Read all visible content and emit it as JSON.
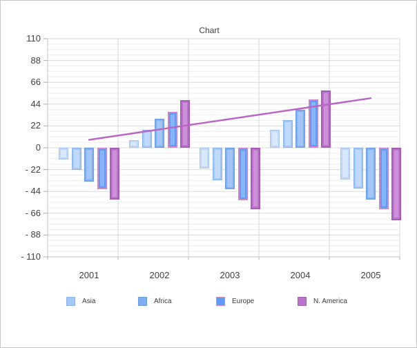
{
  "title": "Chart",
  "chart_data": {
    "type": "bar",
    "title": "Chart",
    "categories": [
      "2001",
      "2002",
      "2003",
      "2004",
      "2005"
    ],
    "series": [
      {
        "name": "",
        "in_legend": false,
        "values": [
          -12,
          8,
          -21,
          18,
          -32
        ],
        "fill": "#BFD7F8",
        "border": "#A9C7F0",
        "highlight": "#DAE8FC"
      },
      {
        "name": "Asia",
        "in_legend": true,
        "values": [
          -22,
          18,
          -33,
          28,
          -41
        ],
        "fill": "#A3C7F6",
        "border": "#8AB2EA",
        "highlight": "#C2DAFA"
      },
      {
        "name": "Africa",
        "in_legend": true,
        "values": [
          -34,
          29,
          -42,
          38,
          -52
        ],
        "fill": "#7EAEF2",
        "border": "#6B9CE2",
        "highlight": "#A3C6F8"
      },
      {
        "name": "Europe",
        "in_legend": true,
        "values": [
          -42,
          36,
          -53,
          49,
          -62
        ],
        "fill": "#5C9CF8",
        "border": "#CF85C6",
        "highlight": "#87B5FA"
      },
      {
        "name": "N. America",
        "in_legend": true,
        "values": [
          -52,
          48,
          -62,
          58,
          -73
        ],
        "fill": "#BA74CA",
        "border": "#A75BB8",
        "highlight": "#CD90D9"
      }
    ],
    "trendline": {
      "start_value": 8,
      "end_value": 50,
      "color": "#B966C5"
    },
    "y_axis": {
      "min": -110,
      "max": 110,
      "major_step": 22,
      "minor_divisions": 4,
      "tick_labels": [
        "110",
        "88",
        "66",
        "44",
        "22",
        "0",
        "- 22",
        "- 44",
        "- 66",
        "- 88",
        "- 110"
      ]
    },
    "x_axis": {
      "labels": [
        "2001",
        "2002",
        "2003",
        "2004",
        "2005"
      ]
    },
    "legend": {
      "position": "bottom",
      "items": [
        "Asia",
        "Africa",
        "Europe",
        "N. America"
      ]
    },
    "grid": true,
    "colors": {
      "grid_minor": "#EEEEEE",
      "grid_major": "#DADADA",
      "grid_vertical": "#D6D6D6",
      "axis": "#C0C0C0",
      "tick": "#ADADAD",
      "text": "#3F3F3F"
    }
  }
}
